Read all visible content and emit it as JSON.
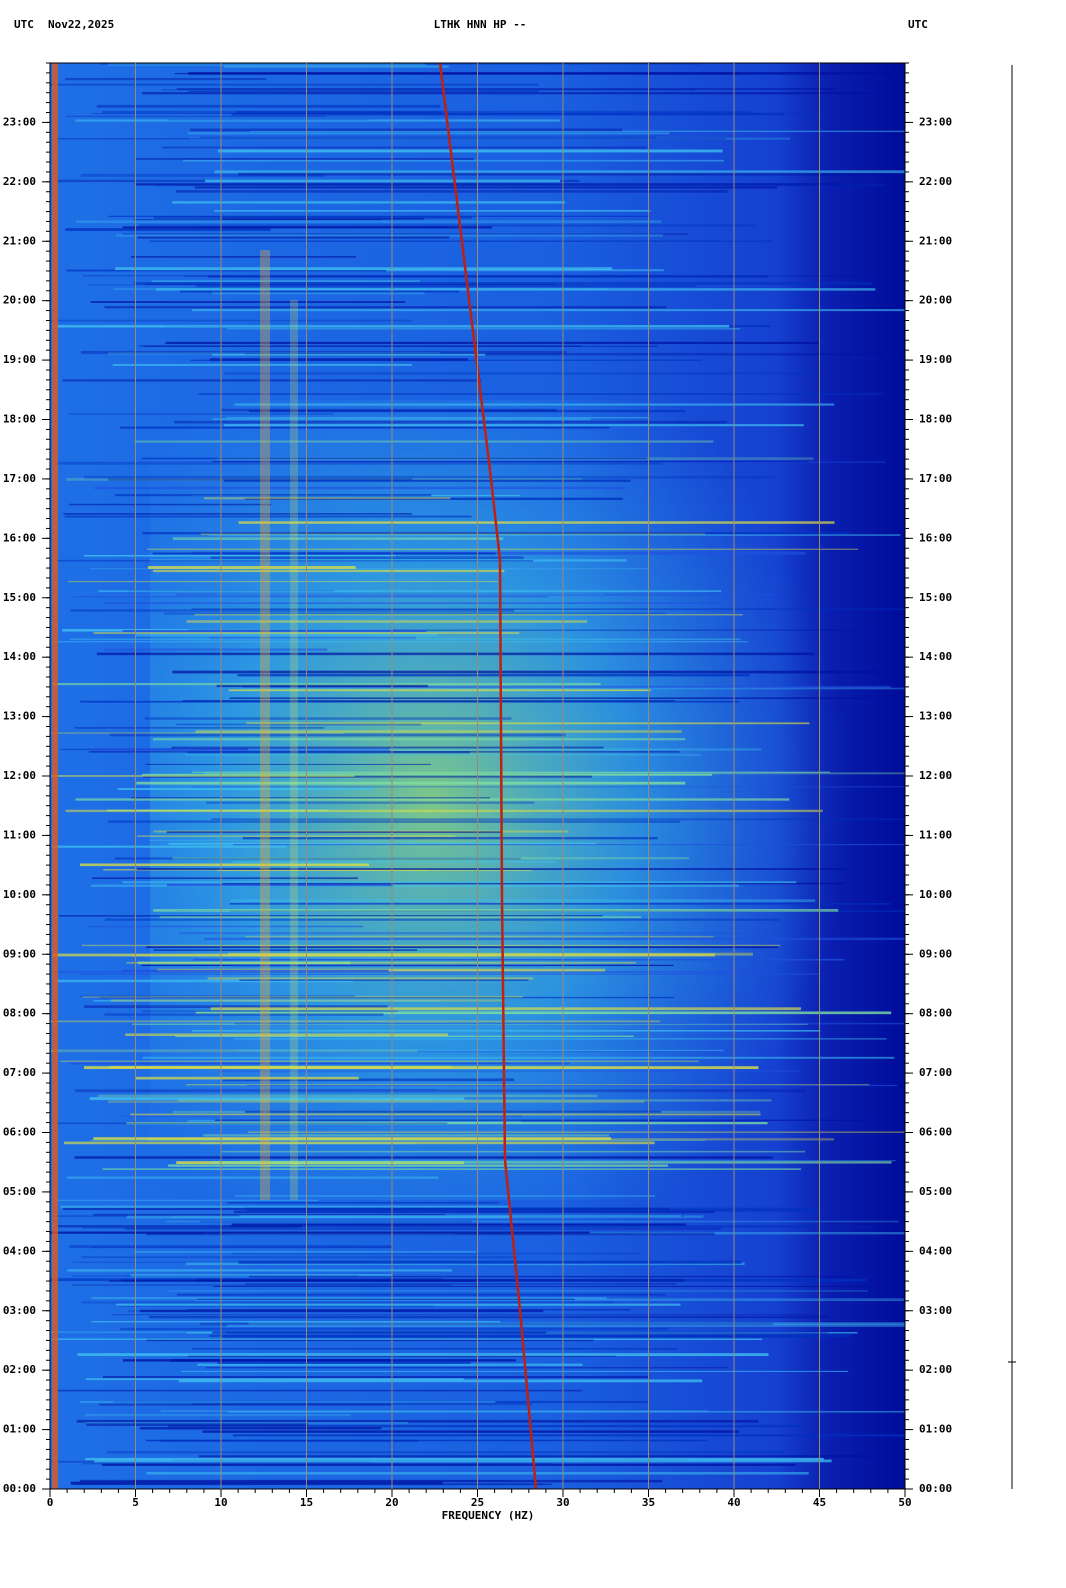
{
  "chart_data": {
    "type": "spectrogram",
    "time_zone": "UTC",
    "date": "Nov22,2025",
    "title": "LTHK HNN HP --",
    "xlabel": "FREQUENCY (HZ)",
    "xlim": [
      0,
      50
    ],
    "xticks": [
      0,
      5,
      10,
      15,
      20,
      25,
      30,
      35,
      40,
      45,
      50
    ],
    "ylim": [
      0,
      24
    ],
    "yticks": [
      {
        "value": 0,
        "label": "00:00"
      },
      {
        "value": 1,
        "label": "01:00"
      },
      {
        "value": 2,
        "label": "02:00"
      },
      {
        "value": 3,
        "label": "03:00"
      },
      {
        "value": 4,
        "label": "04:00"
      },
      {
        "value": 5,
        "label": "05:00"
      },
      {
        "value": 6,
        "label": "06:00"
      },
      {
        "value": 7,
        "label": "07:00"
      },
      {
        "value": 8,
        "label": "08:00"
      },
      {
        "value": 9,
        "label": "09:00"
      },
      {
        "value": 10,
        "label": "10:00"
      },
      {
        "value": 11,
        "label": "11:00"
      },
      {
        "value": 12,
        "label": "12:00"
      },
      {
        "value": 13,
        "label": "13:00"
      },
      {
        "value": 14,
        "label": "14:00"
      },
      {
        "value": 15,
        "label": "15:00"
      },
      {
        "value": 16,
        "label": "16:00"
      },
      {
        "value": 17,
        "label": "17:00"
      },
      {
        "value": 18,
        "label": "18:00"
      },
      {
        "value": 19,
        "label": "19:00"
      },
      {
        "value": 20,
        "label": "20:00"
      },
      {
        "value": 21,
        "label": "21:00"
      },
      {
        "value": 22,
        "label": "22:00"
      },
      {
        "value": 23,
        "label": "23:00"
      }
    ],
    "grid": true
  }
}
